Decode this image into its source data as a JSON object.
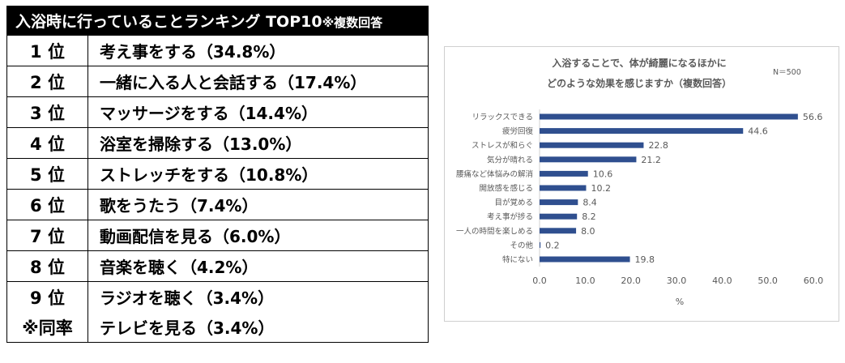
{
  "ranking": {
    "header_title": "入浴時に行っていることランキング TOP10",
    "header_note": "※複数回答",
    "rows": [
      {
        "rank": "1 位",
        "item": "考え事をする（34.8%）"
      },
      {
        "rank": "2 位",
        "item": "一緒に入る人と会話する（17.4%）"
      },
      {
        "rank": "3 位",
        "item": "マッサージをする（14.4%）"
      },
      {
        "rank": "4 位",
        "item": "浴室を掃除する（13.0%）"
      },
      {
        "rank": "5 位",
        "item": "ストレッチをする（10.8%）"
      },
      {
        "rank": "6 位",
        "item": "歌をうたう（7.4%）"
      },
      {
        "rank": "7 位",
        "item": "動画配信を見る（6.0%）"
      },
      {
        "rank": "8 位",
        "item": "音楽を聴く（4.2%）"
      },
      {
        "rank": "9 位",
        "item": "ラジオを聴く（3.4%）"
      },
      {
        "rank": "※同率",
        "item": "テレビを見る（3.4%）"
      }
    ]
  },
  "chart_data": {
    "type": "bar",
    "orientation": "horizontal",
    "title_line1": "入浴することで、体が綺麗になるほかに",
    "title_line2": "どのような効果を感じますか（複数回答）",
    "sample": "N＝500",
    "categories": [
      "リラックスできる",
      "疲労回復",
      "ストレスが和らぐ",
      "気分が晴れる",
      "腰痛など体悩みの解消",
      "開放感を感じる",
      "目が覚める",
      "考え事が捗る",
      "一人の時間を楽しめる",
      "その他",
      "特にない"
    ],
    "values": [
      56.6,
      44.6,
      22.8,
      21.2,
      10.6,
      10.2,
      8.4,
      8.2,
      8.0,
      0.2,
      19.8
    ],
    "value_labels": [
      "56.6",
      "44.6",
      "22.8",
      "21.2",
      "10.6",
      "10.2",
      "8.4",
      "8.2",
      "8.0",
      "0.2",
      "19.8"
    ],
    "xlim": [
      0,
      60
    ],
    "xticks": [
      "0.0",
      "10.0",
      "20.0",
      "30.0",
      "40.0",
      "50.0",
      "60.0"
    ],
    "xlabel": "%",
    "bar_color": "#2f4f8f"
  }
}
